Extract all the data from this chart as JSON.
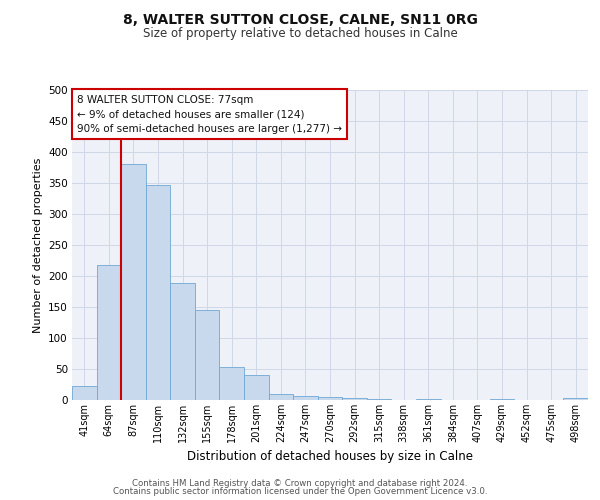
{
  "title1": "8, WALTER SUTTON CLOSE, CALNE, SN11 0RG",
  "title2": "Size of property relative to detached houses in Calne",
  "xlabel": "Distribution of detached houses by size in Calne",
  "ylabel": "Number of detached properties",
  "bar_labels": [
    "41sqm",
    "64sqm",
    "87sqm",
    "110sqm",
    "132sqm",
    "155sqm",
    "178sqm",
    "201sqm",
    "224sqm",
    "247sqm",
    "270sqm",
    "292sqm",
    "315sqm",
    "338sqm",
    "361sqm",
    "384sqm",
    "407sqm",
    "429sqm",
    "452sqm",
    "475sqm",
    "498sqm"
  ],
  "bar_values": [
    22,
    218,
    380,
    347,
    188,
    145,
    53,
    40,
    10,
    7,
    5,
    4,
    1,
    0,
    1,
    0,
    0,
    1,
    0,
    0,
    3
  ],
  "bar_color": "#c9d9ed",
  "bar_edge_color": "#6fa8d4",
  "vline_x": 1.5,
  "vline_color": "#cc0000",
  "annotation_title": "8 WALTER SUTTON CLOSE: 77sqm",
  "annotation_line1": "← 9% of detached houses are smaller (124)",
  "annotation_line2": "90% of semi-detached houses are larger (1,277) →",
  "annotation_box_color": "#ffffff",
  "annotation_box_edge": "#cc0000",
  "grid_color": "#d0d8e8",
  "bg_color": "#eef2f8",
  "footer1": "Contains HM Land Registry data © Crown copyright and database right 2024.",
  "footer2": "Contains public sector information licensed under the Open Government Licence v3.0.",
  "ylim": [
    0,
    500
  ],
  "yticks": [
    0,
    50,
    100,
    150,
    200,
    250,
    300,
    350,
    400,
    450,
    500
  ]
}
